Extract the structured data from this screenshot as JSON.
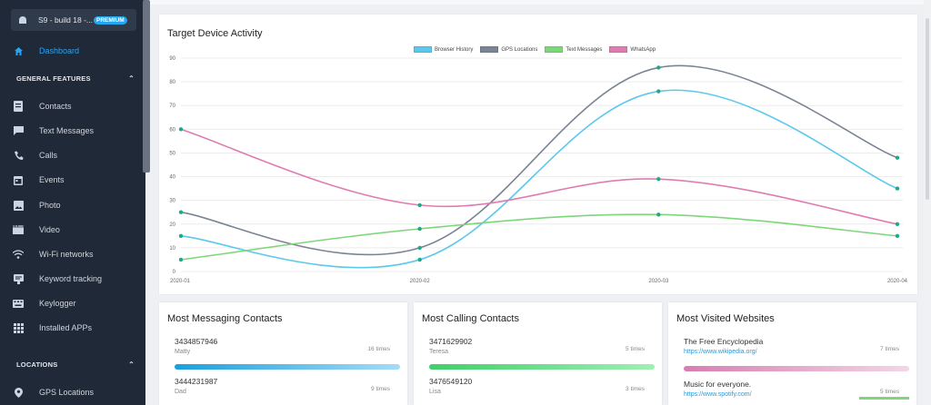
{
  "device": {
    "label": "S9 - build 18 -...",
    "badge": "PREMIUM",
    "icon": "android-icon"
  },
  "nav": {
    "dashboard": "Dashboard",
    "general_section": "GENERAL FEATURES",
    "items": [
      {
        "label": "Contacts",
        "icon": "contacts-icon"
      },
      {
        "label": "Text Messages",
        "icon": "message-icon"
      },
      {
        "label": "Calls",
        "icon": "phone-icon"
      },
      {
        "label": "Events",
        "icon": "calendar-icon"
      },
      {
        "label": "Photo",
        "icon": "photo-icon"
      },
      {
        "label": "Video",
        "icon": "video-icon"
      },
      {
        "label": "Wi-Fi networks",
        "icon": "wifi-icon"
      },
      {
        "label": "Keyword tracking",
        "icon": "keyword-icon"
      },
      {
        "label": "Keylogger",
        "icon": "keyboard-icon"
      },
      {
        "label": "Installed APPs",
        "icon": "apps-icon"
      }
    ],
    "locations_section": "LOCATIONS",
    "gps": "GPS Locations"
  },
  "chart": {
    "title": "Target Device Activity",
    "legend": [
      "Browser History",
      "GPS Locations",
      "Text Messages",
      "WhatsApp"
    ]
  },
  "chart_data": {
    "type": "line",
    "title": "Target Device Activity",
    "categories": [
      "2020-01",
      "2020-02",
      "2020-03",
      "2020-04"
    ],
    "ylim": [
      0,
      90
    ],
    "yticks": [
      0,
      10,
      20,
      30,
      40,
      50,
      60,
      70,
      80,
      90
    ],
    "grid": true,
    "legend_position": "top",
    "series": [
      {
        "name": "Browser History",
        "color": "#5bc8ec",
        "values": [
          15,
          5,
          76,
          35
        ]
      },
      {
        "name": "GPS Locations",
        "color": "#7b8494",
        "values": [
          25,
          10,
          86,
          48
        ]
      },
      {
        "name": "Text Messages",
        "color": "#7ed67a",
        "values": [
          5,
          18,
          24,
          15
        ]
      },
      {
        "name": "WhatsApp",
        "color": "#e07cb2",
        "values": [
          60,
          28,
          39,
          20
        ]
      }
    ]
  },
  "messaging": {
    "title": "Most Messaging Contacts",
    "entries": [
      {
        "number": "3434857946",
        "name": "Matty",
        "count": "16 times"
      },
      {
        "number": "3444231987",
        "name": "Dad",
        "count": "9 times"
      }
    ]
  },
  "calling": {
    "title": "Most Calling Contacts",
    "entries": [
      {
        "number": "3471629902",
        "name": "Teresa",
        "count": "5 times"
      },
      {
        "number": "3476549120",
        "name": "Lisa",
        "count": "3 times"
      }
    ]
  },
  "websites": {
    "title": "Most Visited Websites",
    "entries": [
      {
        "name": "The Free Encyclopedia",
        "url": "https://www.wikipedia.org/",
        "count": "7 times"
      },
      {
        "name": "Music for everyone.",
        "url": "https://www.spotify.com/",
        "count": "5 times"
      }
    ]
  },
  "colors": {
    "sidebar": "#1f2937",
    "accent": "#2aa3f0"
  }
}
